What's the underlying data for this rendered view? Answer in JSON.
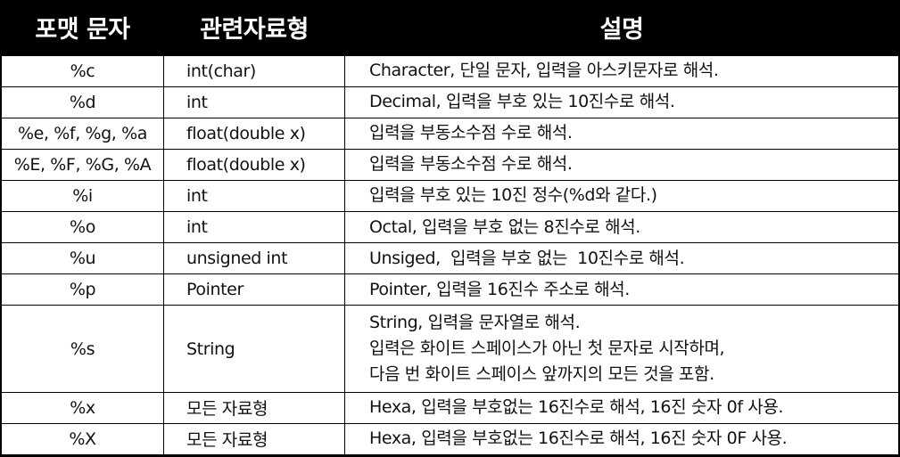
{
  "headers": {
    "format": "포맷 문자",
    "type": "관련자료형",
    "description": "설명"
  },
  "rows": [
    {
      "format": "%c",
      "type": "int(char)",
      "description": [
        "Character, 단일 문자, 입력을 아스키문자로 해석."
      ]
    },
    {
      "format": "%d",
      "type": "int",
      "description": [
        "Decimal, 입력을 부호 있는 10진수로 해석."
      ]
    },
    {
      "format": "%e, %f, %g, %a",
      "type": "float(double x)",
      "description": [
        "입력을 부동소수점 수로 해석."
      ]
    },
    {
      "format": "%E, %F, %G, %A",
      "type": "float(double x)",
      "description": [
        "입력을 부동소수점 수로 해석."
      ]
    },
    {
      "format": "%i",
      "type": "int",
      "description": [
        "입력을 부호 있는 10진 정수(%d와 같다.)"
      ]
    },
    {
      "format": "%o",
      "type": "int",
      "description": [
        "Octal, 입력을 부호 없는 8진수로 해석."
      ]
    },
    {
      "format": "%u",
      "type": "unsigned int",
      "description": [
        "Unsiged,  입력을 부호 없는  10진수로 해석."
      ]
    },
    {
      "format": "%p",
      "type": "Pointer",
      "description": [
        "Pointer, 입력을 16진수 주소로 해석."
      ]
    },
    {
      "format": "%s",
      "type": "String",
      "description": [
        "String, 입력을 문자열로 해석.",
        "입력은 화이트 스페이스가 아닌 첫 문자로 시작하며,",
        "다음 번 화이트 스페이스 앞까지의 모든 것을 포함."
      ]
    },
    {
      "format": "%x",
      "type": "모든 자료형",
      "description": [
        "Hexa, 입력을 부호없는 16진수로 해석, 16진 숫자 0f 사용."
      ]
    },
    {
      "format": "%X",
      "type": "모든 자료형",
      "description": [
        "Hexa, 입력을 부호없는 16진수로 해석, 16진 숫자 0F 사용."
      ]
    }
  ]
}
